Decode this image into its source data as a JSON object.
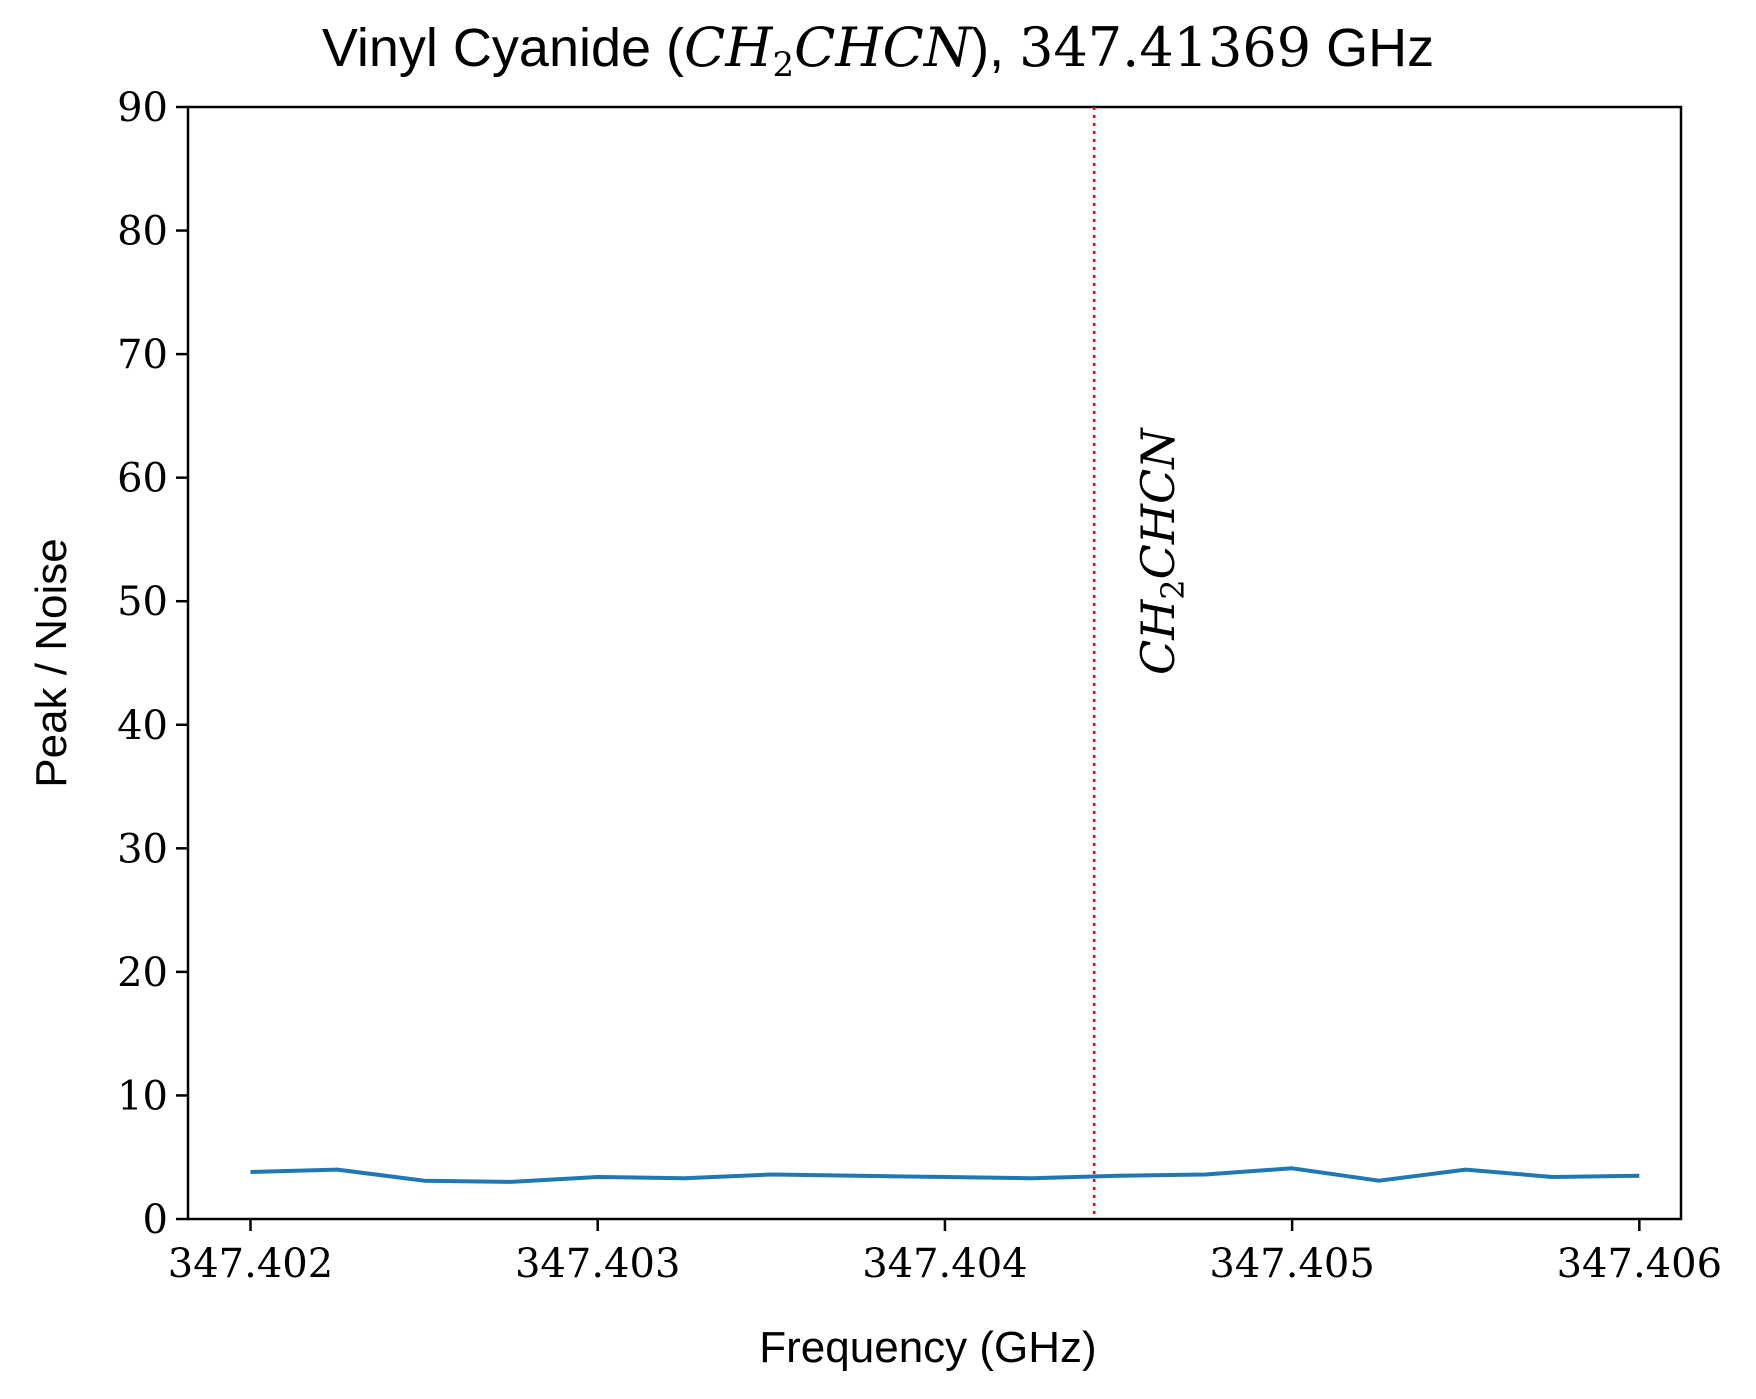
{
  "chart_data": {
    "type": "line",
    "title": {
      "prefix": "Vinyl Cyanide (",
      "formula_a": "CH",
      "formula_sub": "2",
      "formula_b": "CHCN",
      "middle": "), ",
      "freq": "347.41369",
      "suffix": " GHz"
    },
    "xlabel": "Frequency (GHz)",
    "ylabel": "Peak / Noise",
    "xlim": [
      347.40182,
      347.40612
    ],
    "ylim": [
      0,
      90
    ],
    "xticks": [
      347.402,
      347.403,
      347.404,
      347.405,
      347.406
    ],
    "xtick_labels": [
      "347.402",
      "347.403",
      "347.404",
      "347.405",
      "347.406"
    ],
    "yticks": [
      0,
      10,
      20,
      30,
      40,
      50,
      60,
      70,
      80,
      90
    ],
    "ytick_labels": [
      "0",
      "10",
      "20",
      "30",
      "40",
      "50",
      "60",
      "70",
      "80",
      "90"
    ],
    "series": [
      {
        "color": "#1f77b4",
        "x": [
          347.402,
          347.40225,
          347.4025,
          347.40275,
          347.403,
          347.40325,
          347.4035,
          347.40375,
          347.404,
          347.40425,
          347.4045,
          347.40475,
          347.405,
          347.40525,
          347.4055,
          347.40575,
          347.406
        ],
        "y": [
          3.8,
          4.0,
          3.1,
          3.0,
          3.4,
          3.3,
          3.6,
          3.5,
          3.4,
          3.3,
          3.5,
          3.6,
          4.1,
          3.1,
          4.0,
          3.4,
          3.5
        ]
      }
    ],
    "marker_line": {
      "x": 347.40443,
      "color": "#ff0000",
      "style": "dotted",
      "label_a": "CH",
      "label_sub": "2",
      "label_b": "CHCN"
    },
    "grid": false,
    "legend": "none"
  }
}
